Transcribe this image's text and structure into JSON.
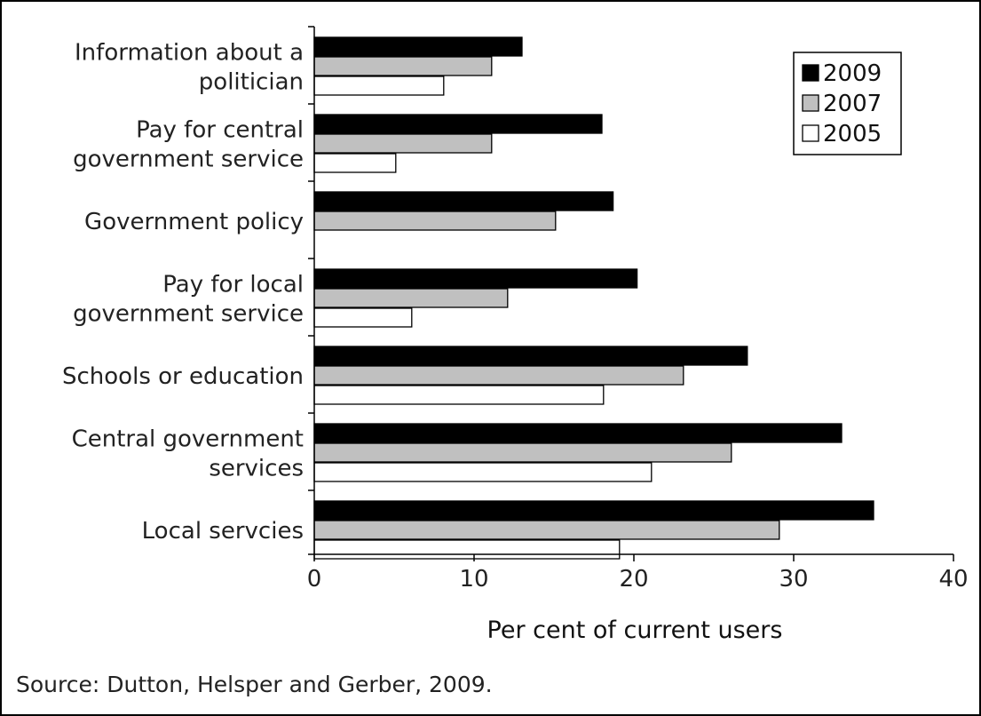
{
  "chart_data": {
    "type": "bar",
    "orientation": "horizontal",
    "categories": [
      [
        "Information about a",
        "politician"
      ],
      [
        "Pay for central",
        "government service"
      ],
      [
        "Government policy"
      ],
      [
        "Pay for local",
        "government service"
      ],
      [
        "Schools or education"
      ],
      [
        "Central government",
        "services"
      ],
      [
        "Local servcies"
      ]
    ],
    "series": [
      {
        "name": "2009",
        "color": "#000000",
        "values": [
          13,
          18,
          18.7,
          20.2,
          27.1,
          33,
          35
        ]
      },
      {
        "name": "2007",
        "color": "#c0c0c0",
        "values": [
          11.1,
          11.1,
          15.1,
          12.1,
          23.1,
          26.1,
          29.1
        ]
      },
      {
        "name": "2005",
        "color": "#ffffff",
        "values": [
          8.1,
          5.1,
          null,
          6.1,
          18.1,
          21.1,
          19.1
        ]
      }
    ],
    "xlabel": "Per cent of current users",
    "xlim": [
      0,
      40
    ],
    "xticks": [
      0,
      10,
      20,
      30,
      40
    ],
    "legend_position": "top-right",
    "grid": false
  },
  "source": "Source: Dutton, Helsper and Gerber, 2009."
}
